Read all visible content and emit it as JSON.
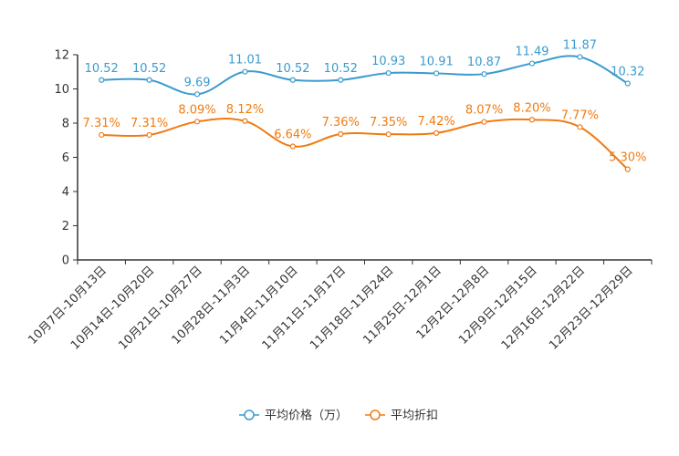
{
  "chart_data": {
    "type": "line",
    "title": "",
    "xlabel": "",
    "ylabel": "",
    "ylim": [
      0,
      12
    ],
    "yticks": [
      0,
      2,
      4,
      6,
      8,
      10,
      12
    ],
    "ytick_labels": [
      "0",
      "2",
      "4",
      "6",
      "8",
      "10",
      "12"
    ],
    "grid": false,
    "legend_position": "bottom",
    "categories": [
      "10月7日-10月13日",
      "10月14日-10月20日",
      "10月21日-10月27日",
      "10月28日-11月3日",
      "11月4日-11月10日",
      "11月11日-11月17日",
      "11月18日-11月24日",
      "11月25日-12月1日",
      "12月2日-12月8日",
      "12月9日-12月15日",
      "12月16日-12月22日",
      "12月23日-12月29日"
    ],
    "series": [
      {
        "name": "平均价格（万）",
        "color": "#3a9bd0",
        "values": [
          10.52,
          10.52,
          9.69,
          11.01,
          10.52,
          10.52,
          10.93,
          10.91,
          10.87,
          11.49,
          11.87,
          10.32
        ],
        "labels": [
          "10.52",
          "10.52",
          "9.69",
          "11.01",
          "10.52",
          "10.52",
          "10.93",
          "10.91",
          "10.87",
          "11.49",
          "11.87",
          "10.32"
        ]
      },
      {
        "name": "平均折扣",
        "color": "#f07b12",
        "values": [
          7.31,
          7.31,
          8.09,
          8.12,
          6.64,
          7.36,
          7.35,
          7.42,
          8.07,
          8.2,
          7.77,
          5.3
        ],
        "labels": [
          "7.31%",
          "7.31%",
          "8.09%",
          "8.12%",
          "6.64%",
          "7.36%",
          "7.35%",
          "7.42%",
          "8.07%",
          "8.20%",
          "7.77%",
          "5.30%"
        ]
      }
    ]
  }
}
